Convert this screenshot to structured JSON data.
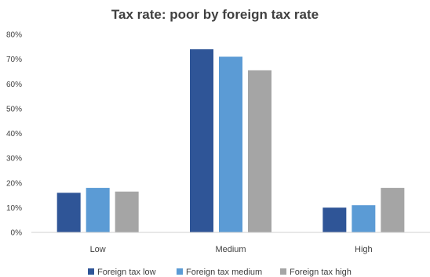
{
  "chart_data": {
    "type": "bar",
    "title": "Tax rate: poor by foreign tax rate",
    "xlabel": "",
    "ylabel": "",
    "categories": [
      "Low",
      "Medium",
      "High"
    ],
    "series": [
      {
        "name": "Foreign tax low",
        "color": "#2F5597",
        "values": [
          16,
          74,
          10
        ]
      },
      {
        "name": "Foreign tax medium",
        "color": "#5B9BD5",
        "values": [
          18,
          71,
          11
        ]
      },
      {
        "name": "Foreign tax high",
        "color": "#A5A5A5",
        "values": [
          16.5,
          65.5,
          18
        ]
      }
    ],
    "ylim": [
      0,
      80
    ],
    "yticks": [
      0,
      10,
      20,
      30,
      40,
      50,
      60,
      70,
      80
    ],
    "ytick_labels": [
      "0%",
      "10%",
      "20%",
      "30%",
      "40%",
      "50%",
      "60%",
      "70%",
      "80%"
    ],
    "grid": false,
    "legend": "bottom"
  }
}
